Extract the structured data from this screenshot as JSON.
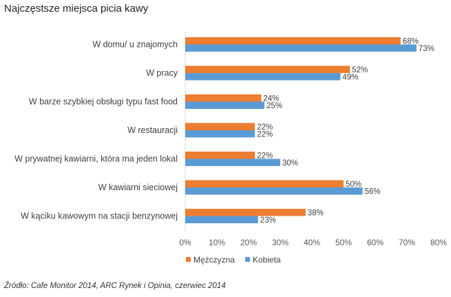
{
  "title": "Najczęstsze miejsca picia kawy",
  "source": "Źródło: Cafe Monitor 2014, ARC Rynek i Opinia, czerwiec 2014",
  "chart_data": {
    "type": "bar",
    "orientation": "horizontal",
    "title": "Najczęstsze miejsca picia kawy",
    "categories": [
      "W domu/ u znajomych",
      "W pracy",
      "W barze szybkiej obsługi typu fast food",
      "W restauracji",
      "W prywatnej kawiarni, która ma jeden lokal",
      "W kawiarni sieciowej",
      "W kąciku kawowym na stacji benzynowej"
    ],
    "series": [
      {
        "name": "Mężczyzna",
        "color": "#ED7D31",
        "values": [
          68,
          52,
          24,
          22,
          22,
          50,
          38
        ]
      },
      {
        "name": "Kobieta",
        "color": "#5B9BD5",
        "values": [
          73,
          49,
          25,
          22,
          30,
          56,
          23
        ]
      }
    ],
    "value_suffix": "%",
    "xlim": [
      0,
      80
    ],
    "xticks": [
      "0%",
      "10%",
      "20%",
      "30%",
      "40%",
      "50%",
      "60%",
      "70%",
      "80%"
    ],
    "grid": false,
    "legend_position": "bottom"
  }
}
